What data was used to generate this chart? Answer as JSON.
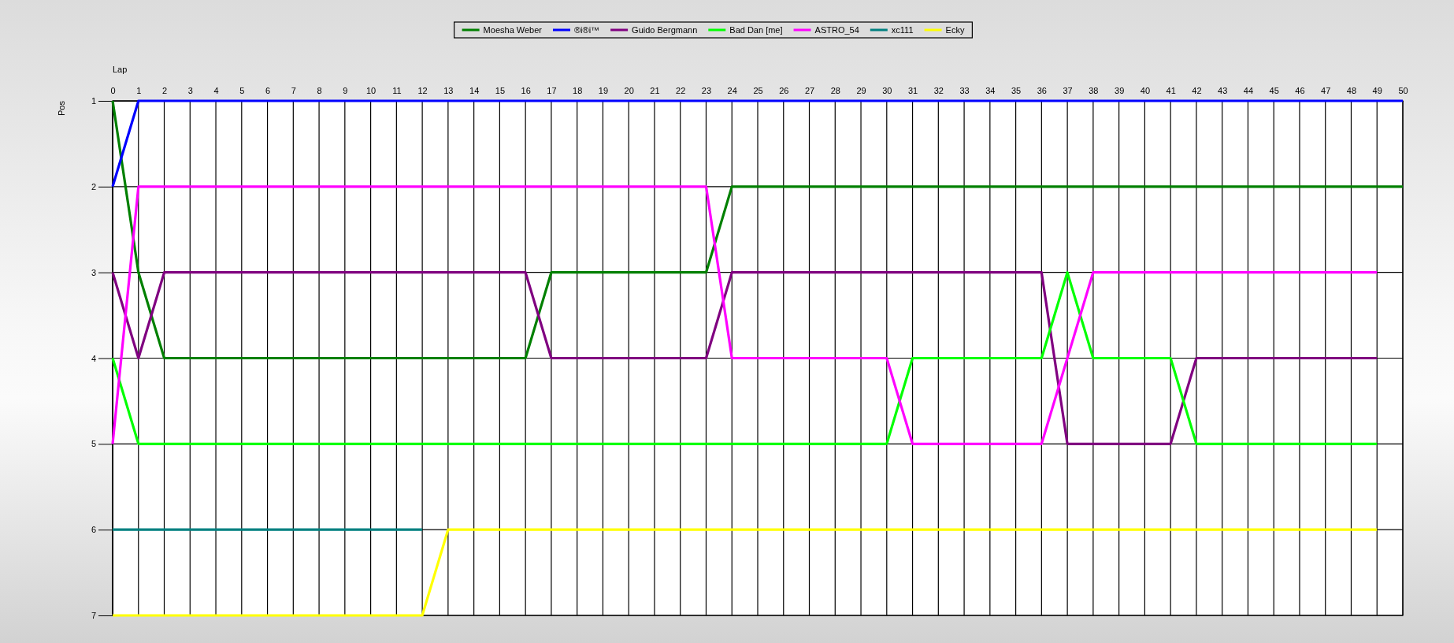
{
  "chart_data": {
    "type": "line",
    "xlabel": "Lap",
    "ylabel": "Pos",
    "x": [
      0,
      1,
      2,
      3,
      4,
      5,
      6,
      7,
      8,
      9,
      10,
      11,
      12,
      13,
      14,
      15,
      16,
      17,
      18,
      19,
      20,
      21,
      22,
      23,
      24,
      25,
      26,
      27,
      28,
      29,
      30,
      31,
      32,
      33,
      34,
      35,
      36,
      37,
      38,
      39,
      40,
      41,
      42,
      43,
      44,
      45,
      46,
      47,
      48,
      49,
      50
    ],
    "xlim": [
      0,
      50
    ],
    "xticks": [
      0,
      1,
      2,
      3,
      4,
      5,
      6,
      7,
      8,
      9,
      10,
      11,
      12,
      13,
      14,
      15,
      16,
      17,
      18,
      19,
      20,
      21,
      22,
      23,
      24,
      25,
      26,
      27,
      28,
      29,
      30,
      31,
      32,
      33,
      34,
      35,
      36,
      37,
      38,
      39,
      40,
      41,
      42,
      43,
      44,
      45,
      46,
      47,
      48,
      49,
      50
    ],
    "ylim": [
      7,
      1
    ],
    "yticks": [
      1,
      2,
      3,
      4,
      5,
      6,
      7
    ],
    "grid": true,
    "legend": "top",
    "line_style": "solid",
    "series": [
      {
        "name": "Moesha Weber",
        "color": "#008000",
        "values": [
          1,
          3,
          4,
          4,
          4,
          4,
          4,
          4,
          4,
          4,
          4,
          4,
          4,
          4,
          4,
          4,
          4,
          3,
          3,
          3,
          3,
          3,
          3,
          3,
          2,
          2,
          2,
          2,
          2,
          2,
          2,
          2,
          2,
          2,
          2,
          2,
          2,
          2,
          2,
          2,
          2,
          2,
          2,
          2,
          2,
          2,
          2,
          2,
          2,
          2,
          2
        ]
      },
      {
        "name": "®i®i™",
        "color": "#0000ff",
        "values": [
          2,
          1,
          1,
          1,
          1,
          1,
          1,
          1,
          1,
          1,
          1,
          1,
          1,
          1,
          1,
          1,
          1,
          1,
          1,
          1,
          1,
          1,
          1,
          1,
          1,
          1,
          1,
          1,
          1,
          1,
          1,
          1,
          1,
          1,
          1,
          1,
          1,
          1,
          1,
          1,
          1,
          1,
          1,
          1,
          1,
          1,
          1,
          1,
          1,
          1,
          1
        ]
      },
      {
        "name": "Guido Bergmann",
        "color": "#800080",
        "values": [
          3,
          4,
          3,
          3,
          3,
          3,
          3,
          3,
          3,
          3,
          3,
          3,
          3,
          3,
          3,
          3,
          3,
          4,
          4,
          4,
          4,
          4,
          4,
          4,
          3,
          3,
          3,
          3,
          3,
          3,
          3,
          3,
          3,
          3,
          3,
          3,
          3,
          5,
          5,
          5,
          5,
          5,
          4,
          4,
          4,
          4,
          4,
          4,
          4,
          4,
          null
        ]
      },
      {
        "name": "Bad Dan [me]",
        "color": "#00ff00",
        "values": [
          4,
          5,
          5,
          5,
          5,
          5,
          5,
          5,
          5,
          5,
          5,
          5,
          5,
          5,
          5,
          5,
          5,
          5,
          5,
          5,
          5,
          5,
          5,
          5,
          5,
          5,
          5,
          5,
          5,
          5,
          5,
          4,
          4,
          4,
          4,
          4,
          4,
          3,
          4,
          4,
          4,
          4,
          5,
          5,
          5,
          5,
          5,
          5,
          5,
          5,
          null
        ]
      },
      {
        "name": "ASTRO_54",
        "color": "#ff00ff",
        "values": [
          5,
          2,
          2,
          2,
          2,
          2,
          2,
          2,
          2,
          2,
          2,
          2,
          2,
          2,
          2,
          2,
          2,
          2,
          2,
          2,
          2,
          2,
          2,
          2,
          4,
          4,
          4,
          4,
          4,
          4,
          4,
          5,
          5,
          5,
          5,
          5,
          5,
          4,
          3,
          3,
          3,
          3,
          3,
          3,
          3,
          3,
          3,
          3,
          3,
          3,
          null
        ]
      },
      {
        "name": "xc111",
        "color": "#008080",
        "values": [
          6,
          6,
          6,
          6,
          6,
          6,
          6,
          6,
          6,
          6,
          6,
          6,
          6,
          null,
          null,
          null,
          null,
          null,
          null,
          null,
          null,
          null,
          null,
          null,
          null,
          null,
          null,
          null,
          null,
          null,
          null,
          null,
          null,
          null,
          null,
          null,
          null,
          null,
          null,
          null,
          null,
          null,
          null,
          null,
          null,
          null,
          null,
          null,
          null,
          null,
          null
        ]
      },
      {
        "name": "Ecky",
        "color": "#ffff00",
        "values": [
          7,
          7,
          7,
          7,
          7,
          7,
          7,
          7,
          7,
          7,
          7,
          7,
          7,
          6,
          6,
          6,
          6,
          6,
          6,
          6,
          6,
          6,
          6,
          6,
          6,
          6,
          6,
          6,
          6,
          6,
          6,
          6,
          6,
          6,
          6,
          6,
          6,
          6,
          6,
          6,
          6,
          6,
          6,
          6,
          6,
          6,
          6,
          6,
          6,
          6,
          null
        ]
      }
    ]
  }
}
